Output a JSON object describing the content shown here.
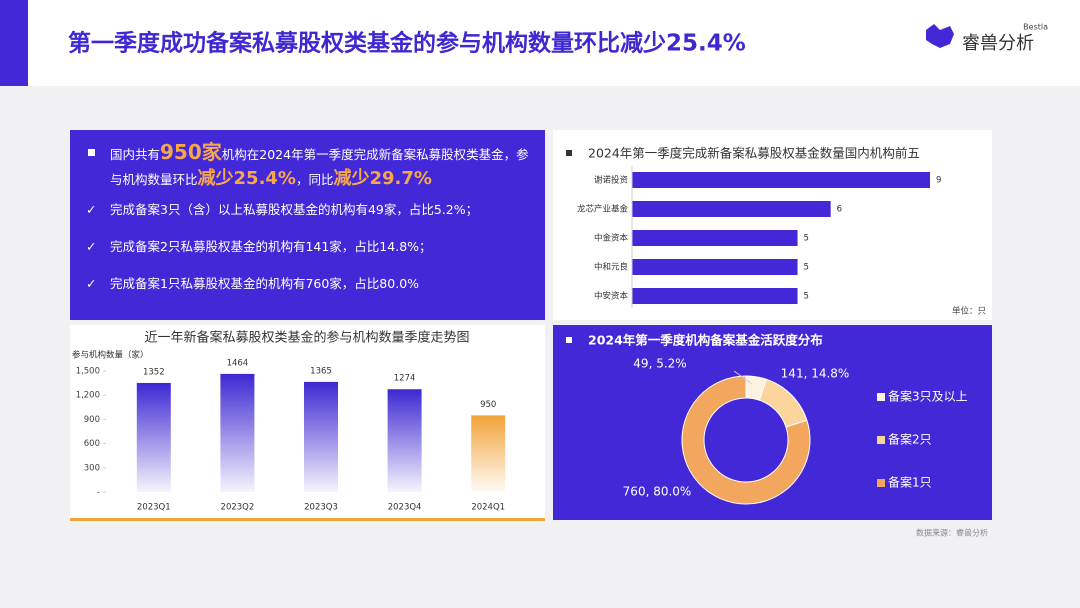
{
  "header": {
    "title": "第一季度成功备案私募股权类基金的参与机构数量环比减少25.4%",
    "logo": "睿兽分析",
    "logo_sub": "Bestla"
  },
  "summary": {
    "lead": [
      {
        "text": "国内共有"
      },
      {
        "text": "950家",
        "highlight": true
      },
      {
        "text": "机构在2024年第一季度完成新备案私募股权类基金，参与机构数量环比"
      },
      {
        "text": "减少25.4%",
        "highlight": true
      },
      {
        "text": "，同比"
      },
      {
        "text": "减少29.7%",
        "highlight": true
      }
    ],
    "bullets": [
      "完成备案3只（含）以上私募股权基金的机构有49家，占比5.2%；",
      "完成备案2只私募股权基金的机构有141家，占比14.8%；",
      "完成备案1只私募股权基金的机构有760家，占比80.0%"
    ]
  },
  "chart_data": [
    {
      "type": "bar",
      "title": "近一年新备案私募股权类基金的参与机构数量季度走势图",
      "y_label": "参与机构数量（家）",
      "categories": [
        "2023Q1",
        "2023Q2",
        "2023Q3",
        "2023Q4",
        "2024Q1"
      ],
      "values": [
        1352,
        1464,
        1365,
        1274,
        950
      ],
      "colors": [
        "#3d28d2",
        "#3d28d2",
        "#3d28d2",
        "#3d28d2",
        "#f2a33a"
      ],
      "ylim": [
        0,
        1500
      ],
      "yticks": [
        {
          "value": 0,
          "label": "-"
        },
        300,
        600,
        900,
        {
          "value": 1200,
          "label": "1,200"
        },
        {
          "value": 1500,
          "label": "1,500"
        }
      ]
    },
    {
      "type": "hbar",
      "title": "2024年第一季度完成新备案私募股权基金数量国内机构前五",
      "categories": [
        "谢诺投资",
        "龙芯产业基金",
        "中金资本",
        "中和元良",
        "中安资本"
      ],
      "values": [
        9,
        6,
        5,
        5,
        5
      ],
      "color": "#4328d8",
      "unit_note": "单位：只"
    },
    {
      "type": "donut",
      "title": "2024年第一季度机构备案基金活跃度分布",
      "categories": [
        "备案3只及以上",
        "备案2只",
        "备案1只"
      ],
      "values": [
        49,
        141,
        760
      ],
      "value_labels": [
        "49, 5.2%",
        "141, 14.8%",
        "760, 80.0%"
      ],
      "colors": [
        "#fdf1e0",
        "#fbd59c",
        "#f2a65e"
      ]
    }
  ],
  "source": "数据来源：睿兽分析"
}
